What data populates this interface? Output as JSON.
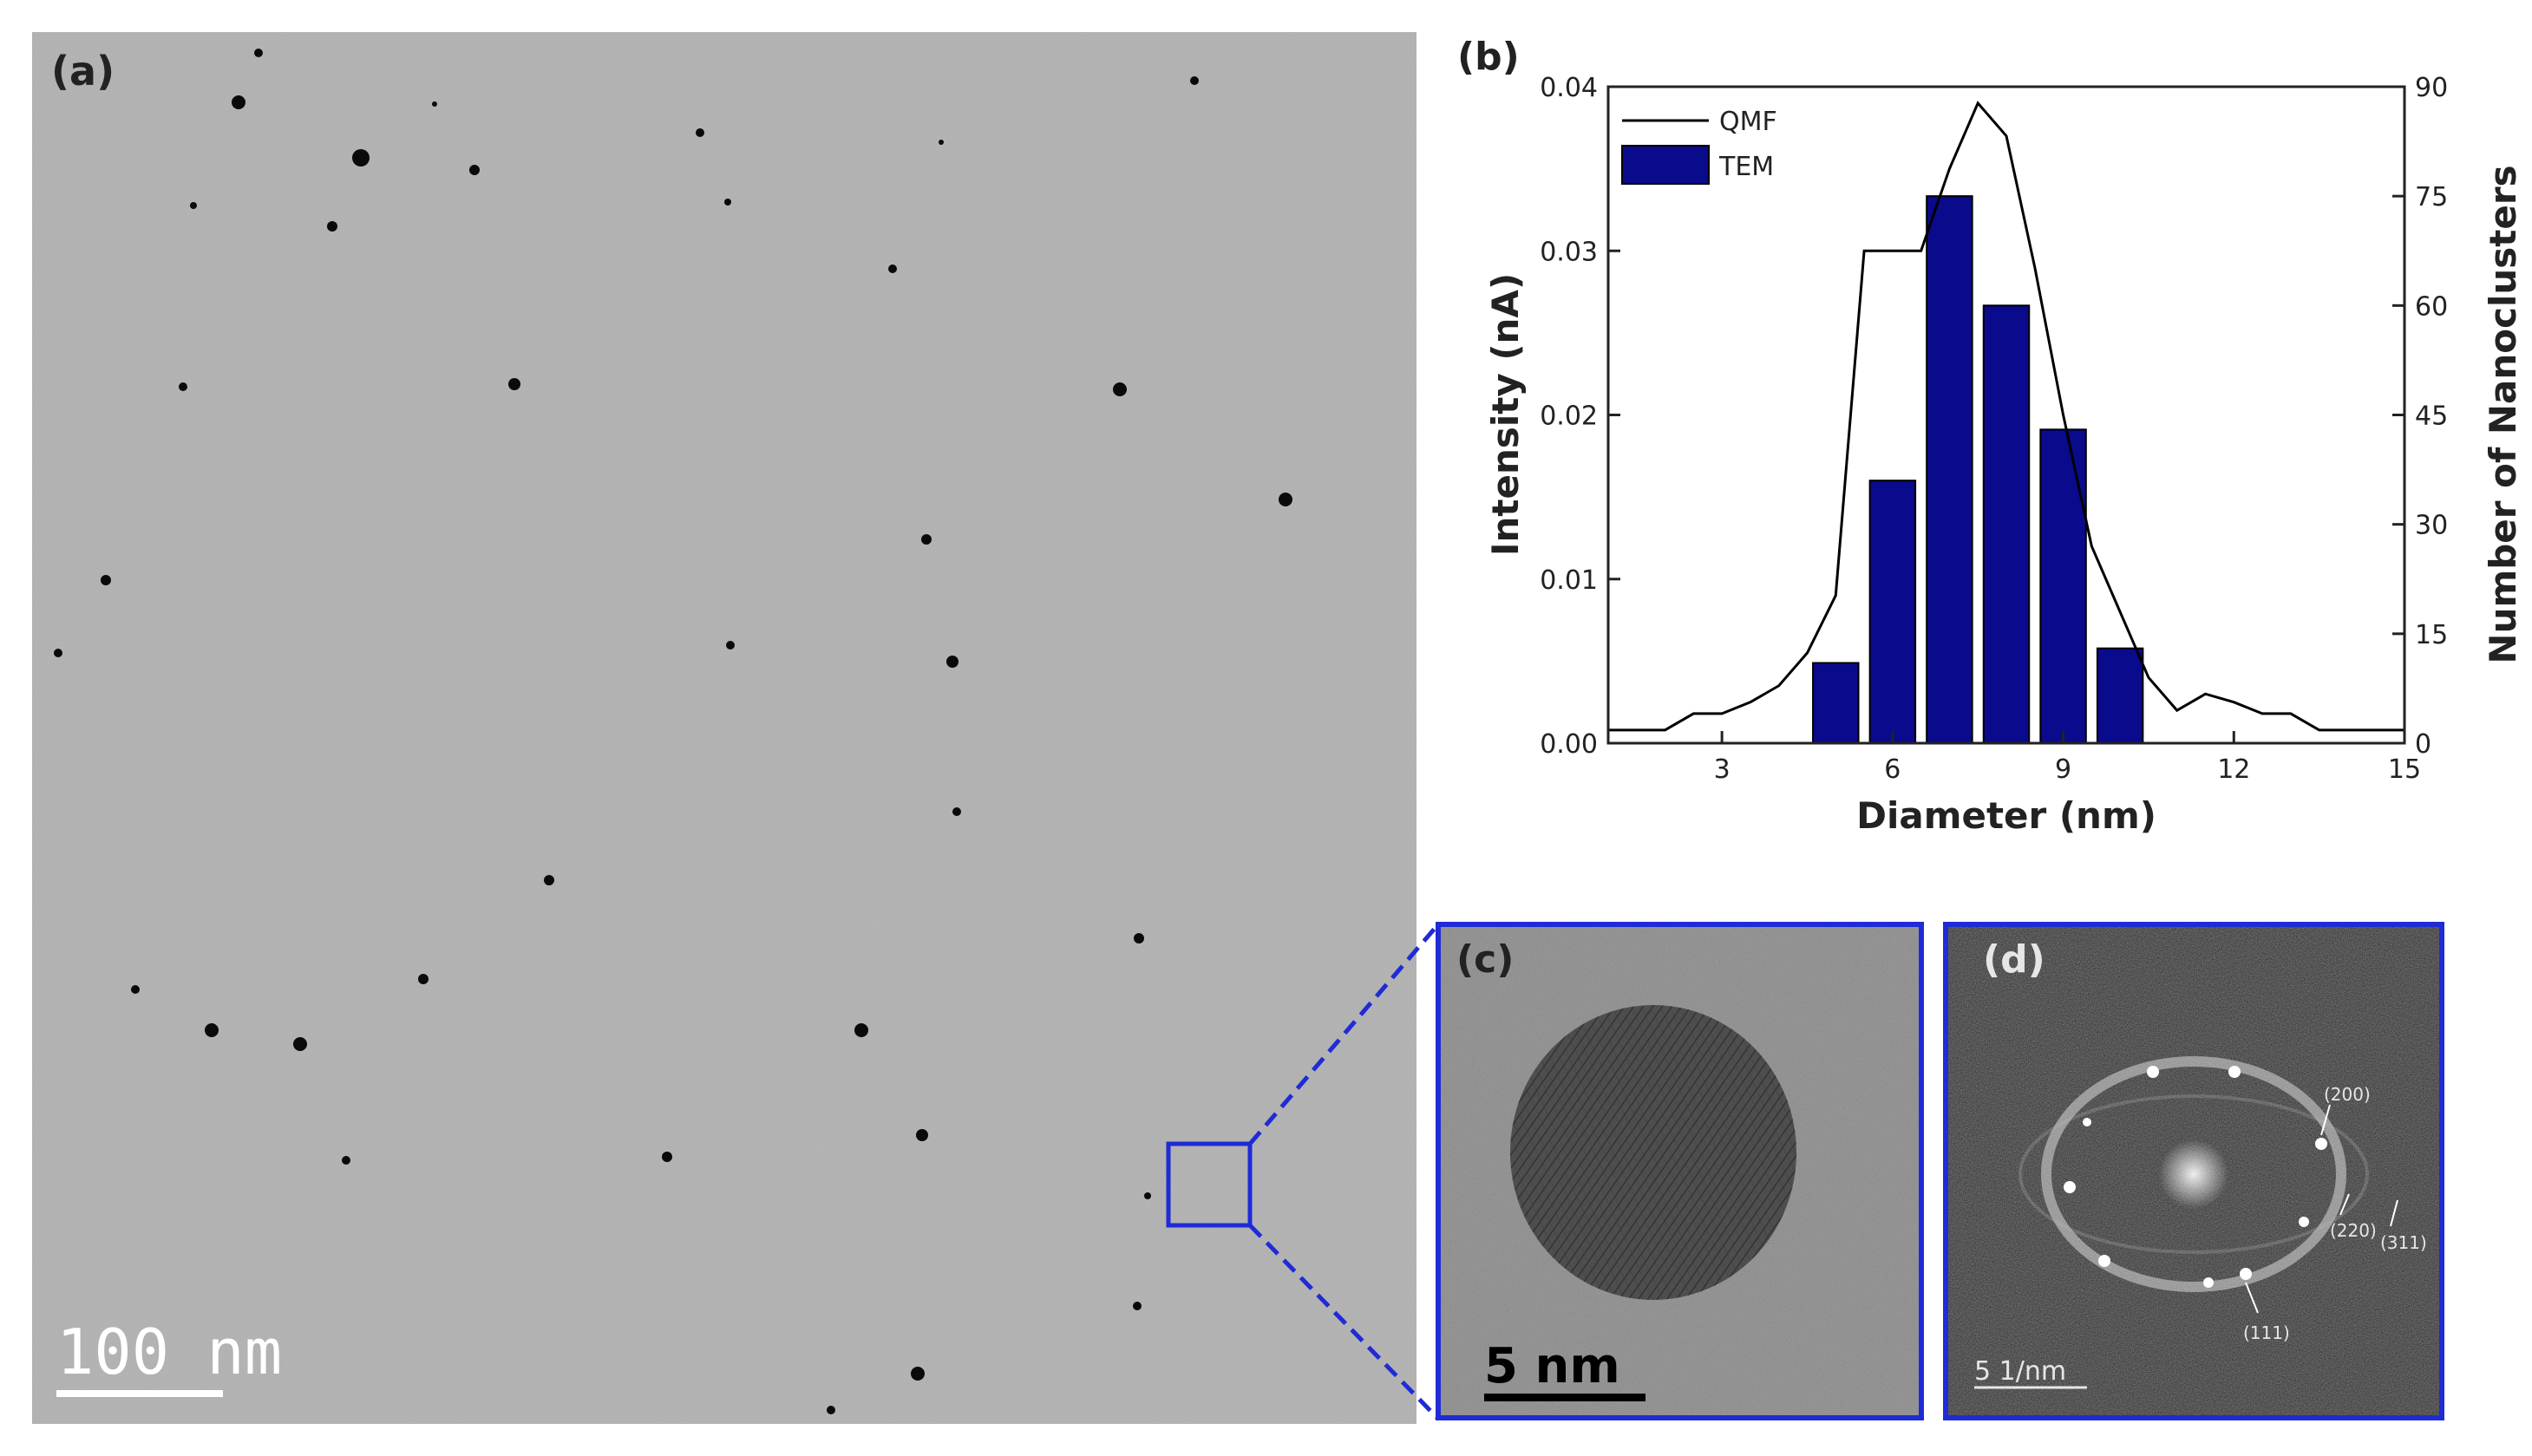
{
  "panel_a": {
    "label": "(a)",
    "scale_bar": "100 nm"
  },
  "panel_b": {
    "label": "(b)"
  },
  "panel_c": {
    "label": "(c)",
    "scale_bar": "5 nm"
  },
  "panel_d": {
    "label": "(d)",
    "scale_bar": "5 1/nm",
    "annotations": [
      "(200)",
      "(220)",
      "(311)",
      "(111)"
    ]
  },
  "colors": {
    "highlight_box": "#1f2bd6",
    "tem_bar_fill": "#0a0a8c",
    "qmf_line": "#000000"
  },
  "chart_data": {
    "type": "bar",
    "xlabel": "Diameter (nm)",
    "ylabel": "Intensity (nA)",
    "y2label": "Number of Nanoclusters",
    "xlim": [
      1,
      15
    ],
    "ylim": [
      0,
      0.04
    ],
    "y2lim": [
      0,
      90
    ],
    "xticks": [
      "3",
      "6",
      "9",
      "12",
      "15"
    ],
    "yticks": [
      "0.00",
      "0.01",
      "0.02",
      "0.03",
      "0.04"
    ],
    "y2ticks": [
      "0",
      "15",
      "30",
      "45",
      "60",
      "75",
      "90"
    ],
    "legend": [
      "QMF",
      "TEM"
    ],
    "legend_position": "top-left",
    "series": [
      {
        "name": "TEM",
        "kind": "bar",
        "axis": "right",
        "x": [
          5.0,
          6.0,
          7.0,
          8.0,
          9.0,
          10.0
        ],
        "values": [
          11,
          36,
          75,
          60,
          43,
          13
        ]
      },
      {
        "name": "QMF",
        "kind": "line",
        "axis": "left",
        "x": [
          1.0,
          2.0,
          2.5,
          3.0,
          3.5,
          4.0,
          4.5,
          5.0,
          5.5,
          6.0,
          6.5,
          7.0,
          7.5,
          8.0,
          8.5,
          9.0,
          9.5,
          10.0,
          10.5,
          11.0,
          11.5,
          12.0,
          12.5,
          13.0,
          13.5,
          15.0
        ],
        "values": [
          0.0008,
          0.0008,
          0.0018,
          0.0018,
          0.0025,
          0.0035,
          0.0055,
          0.009,
          0.03,
          0.03,
          0.03,
          0.035,
          0.039,
          0.037,
          0.029,
          0.02,
          0.012,
          0.008,
          0.004,
          0.002,
          0.003,
          0.0025,
          0.0018,
          0.0018,
          0.0008,
          0.0008
        ]
      }
    ]
  }
}
